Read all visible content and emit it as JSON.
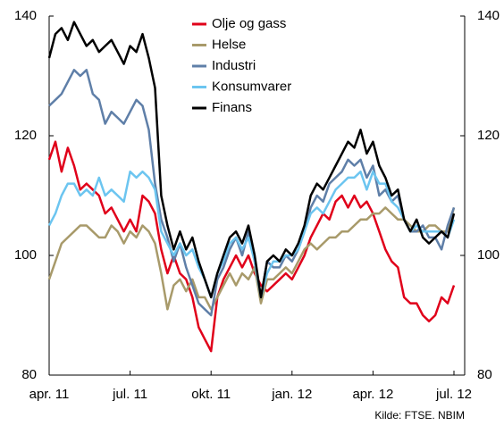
{
  "chart_data": {
    "type": "line",
    "categories": [
      "apr. 11",
      null,
      null,
      null,
      null,
      null,
      null,
      null,
      null,
      null,
      null,
      null,
      null,
      "jul. 11",
      null,
      null,
      null,
      null,
      null,
      null,
      null,
      null,
      null,
      null,
      null,
      null,
      "okt. 11",
      null,
      null,
      null,
      null,
      null,
      null,
      null,
      null,
      null,
      null,
      null,
      null,
      "jan. 12",
      null,
      null,
      null,
      null,
      null,
      null,
      null,
      null,
      null,
      null,
      null,
      null,
      "apr. 12",
      null,
      null,
      null,
      null,
      null,
      null,
      null,
      null,
      null,
      null,
      null,
      null,
      "jul. 12"
    ],
    "series": [
      {
        "name": "Olje og gass",
        "color": "#e0001a",
        "values": [
          116,
          119,
          114,
          118,
          115,
          111,
          112,
          111,
          110,
          107,
          108,
          106,
          104,
          106,
          104,
          110,
          109,
          107,
          101,
          97,
          100,
          97,
          96,
          93,
          88,
          86,
          84,
          93,
          96,
          98,
          100,
          98,
          100,
          97,
          95,
          94,
          95,
          96,
          97,
          96,
          98,
          100,
          103,
          105,
          107,
          106,
          109,
          110,
          108,
          110,
          108,
          109,
          107,
          104,
          101,
          99,
          98,
          93,
          92,
          92,
          90,
          89,
          90,
          93,
          92,
          95
        ]
      },
      {
        "name": "Helse",
        "color": "#a89a6a",
        "values": [
          96,
          99,
          102,
          103,
          104,
          105,
          105,
          104,
          103,
          103,
          105,
          104,
          102,
          104,
          103,
          105,
          104,
          102,
          97,
          91,
          95,
          96,
          94,
          96,
          93,
          93,
          91,
          93,
          95,
          97,
          95,
          97,
          96,
          98,
          92,
          96,
          96,
          97,
          98,
          97,
          99,
          101,
          102,
          101,
          102,
          103,
          103,
          104,
          104,
          105,
          106,
          106,
          107,
          107,
          108,
          107,
          106,
          106,
          105,
          104,
          104,
          105,
          105,
          104,
          104,
          108
        ]
      },
      {
        "name": "Industri",
        "color": "#5f7fa8",
        "values": [
          125,
          126,
          127,
          129,
          131,
          130,
          131,
          127,
          126,
          122,
          124,
          123,
          122,
          124,
          126,
          125,
          121,
          112,
          106,
          103,
          99,
          102,
          98,
          95,
          92,
          91,
          90,
          96,
          98,
          101,
          103,
          100,
          104,
          99,
          93,
          99,
          98,
          98,
          100,
          99,
          101,
          104,
          108,
          110,
          109,
          112,
          113,
          114,
          116,
          115,
          116,
          113,
          115,
          110,
          111,
          109,
          110,
          106,
          104,
          104,
          105,
          103,
          103,
          101,
          105,
          108
        ]
      },
      {
        "name": "Konsumvarer",
        "color": "#6cc5f0",
        "values": [
          105,
          107,
          110,
          112,
          112,
          110,
          111,
          110,
          113,
          110,
          111,
          110,
          109,
          114,
          113,
          114,
          113,
          111,
          104,
          102,
          100,
          102,
          100,
          101,
          98,
          96,
          93,
          97,
          99,
          102,
          103,
          101,
          103,
          99,
          93,
          97,
          99,
          99,
          100,
          100,
          101,
          104,
          107,
          108,
          107,
          109,
          111,
          112,
          113,
          113,
          114,
          111,
          114,
          112,
          112,
          109,
          108,
          106,
          104,
          105,
          104,
          104,
          104,
          104,
          103,
          106
        ]
      },
      {
        "name": "Finans",
        "color": "#000000",
        "values": [
          133,
          137,
          138,
          136,
          139,
          137,
          135,
          136,
          134,
          135,
          136,
          134,
          132,
          135,
          134,
          137,
          133,
          128,
          110,
          105,
          101,
          104,
          101,
          103,
          99,
          96,
          93,
          97,
          100,
          103,
          104,
          102,
          105,
          100,
          93,
          99,
          100,
          99,
          101,
          100,
          102,
          105,
          110,
          112,
          111,
          113,
          115,
          117,
          119,
          118,
          121,
          117,
          119,
          115,
          113,
          110,
          111,
          106,
          104,
          106,
          103,
          102,
          103,
          104,
          103,
          107
        ]
      }
    ],
    "ylim": [
      80,
      140
    ],
    "yticks": [
      80,
      100,
      120,
      140
    ],
    "y2lim": [
      80,
      140
    ],
    "y2ticks": [
      80,
      100,
      120,
      140
    ],
    "legend": "top",
    "source": "Kilde: FTSE. NBIM"
  }
}
